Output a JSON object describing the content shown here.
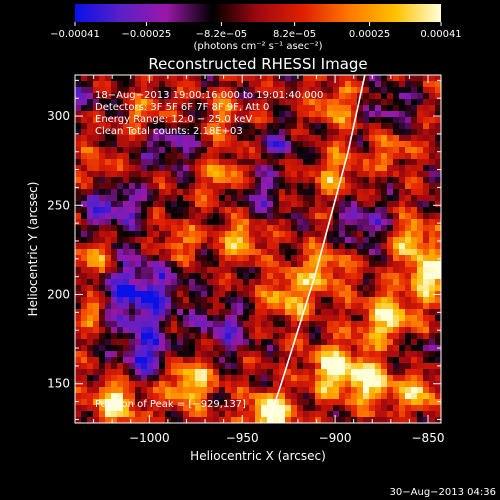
{
  "chart_data": {
    "type": "heatmap",
    "title": "Reconstructed RHESSI Image",
    "xlabel": "Heliocentric X (arcsec)",
    "ylabel": "Heliocentric Y (arcsec)",
    "xlim": [
      -1040,
      -843
    ],
    "ylim": [
      128,
      323
    ],
    "x_ticks": [
      -1000,
      -950,
      -900,
      -850
    ],
    "x_tick_labels": [
      "−1000",
      "−950",
      "−900",
      "−850"
    ],
    "y_ticks": [
      150,
      200,
      250,
      300
    ],
    "y_tick_labels": [
      "150",
      "200",
      "250",
      "300"
    ],
    "colorbar": {
      "range": [
        -0.00041,
        0.00041
      ],
      "ticks": [
        -0.00041,
        -0.00025,
        -8.2e-05,
        8.2e-05,
        0.00025,
        0.00041
      ],
      "tick_labels": [
        "−0.00041",
        "−0.00025",
        "−8.2e−05",
        "8.2e−05",
        "0.00025",
        "0.00041"
      ],
      "unit_label": "(photons cm⁻² s⁻¹ asec⁻²)",
      "colors": [
        "#0a10e8",
        "#5a20c8",
        "#9a18a8",
        "#000000",
        "#a00810",
        "#e02000",
        "#ff7800",
        "#ffc000",
        "#ffffd8"
      ]
    },
    "info_lines": [
      "18−Aug−2013 19:00:16.000 to 19:01:40.000",
      "Detectors: 3F 5F 6F 7F 8F 9F, Att 0",
      "Energy Range: 12.0 − 25.0 keV",
      "Clean     Total counts: 2.18E+03"
    ],
    "peak_label": "Position of Peak = [−929,137]",
    "peak": [
      -929,
      137
    ],
    "limb": [
      [
        -936,
        128
      ],
      [
        -929,
        150
      ],
      [
        -920,
        180
      ],
      [
        -911,
        210
      ],
      [
        -902,
        245
      ],
      [
        -893,
        280
      ],
      [
        -884,
        323
      ]
    ],
    "grid": false
  },
  "footer": {
    "timestamp": "30−Aug−2013 04:36"
  }
}
